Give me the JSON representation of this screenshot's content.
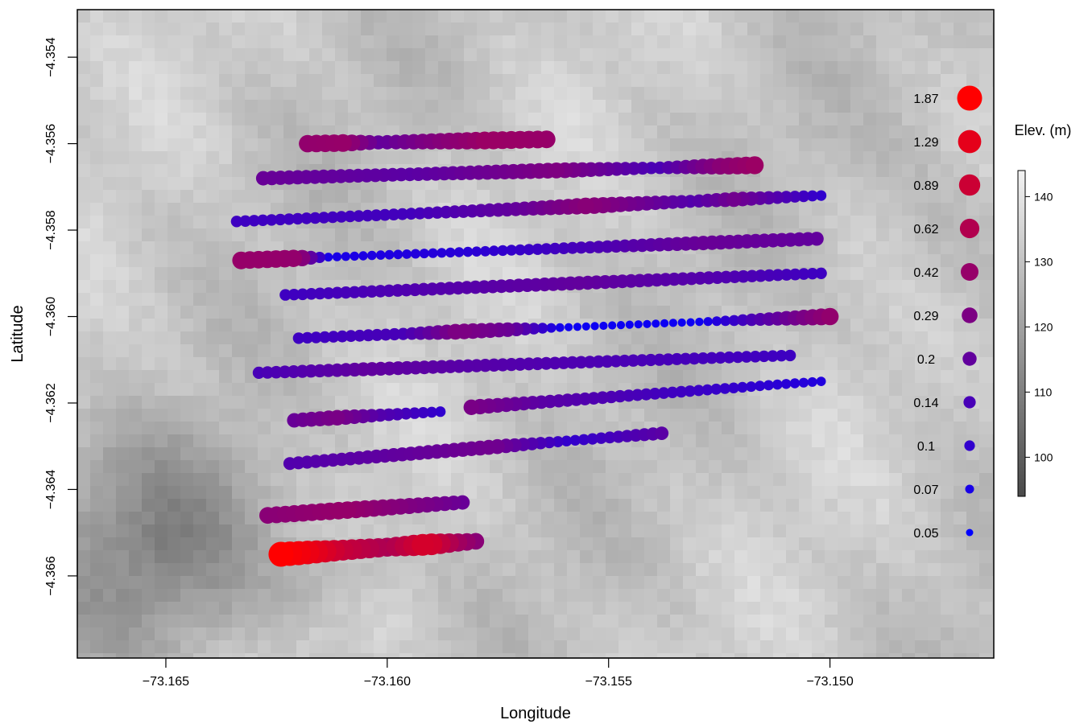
{
  "chart_data": {
    "type": "scatter",
    "title": "",
    "xlabel": "Longitude",
    "ylabel": "Latitude",
    "xlim": [
      -73.167,
      -73.1463
    ],
    "ylim": [
      -4.3679,
      -4.3529
    ],
    "xticks": [
      -73.165,
      -73.16,
      -73.155,
      -73.15
    ],
    "yticks": [
      -4.354,
      -4.356,
      -4.358,
      -4.36,
      -4.362,
      -4.364,
      -4.366
    ],
    "xtick_labels": [
      "−73.165",
      "−73.160",
      "−73.155",
      "−73.150"
    ],
    "ytick_labels": [
      "−4.354",
      "−4.356",
      "−4.358",
      "−4.360",
      "−4.362",
      "−4.364",
      "−4.366"
    ],
    "grid": false,
    "size_legend": {
      "placement": "right",
      "labels": [
        "1.87",
        "1.29",
        "0.89",
        "0.62",
        "0.42",
        "0.29",
        "0.2",
        "0.14",
        "0.1",
        "0.07",
        "0.05"
      ],
      "values": [
        1.87,
        1.29,
        0.89,
        0.62,
        0.42,
        0.29,
        0.2,
        0.14,
        0.1,
        0.07,
        0.05
      ]
    },
    "colorbar": {
      "title": "Elev. (m)",
      "range": [
        94,
        144
      ],
      "ticks": [
        100,
        110,
        120,
        130,
        140
      ],
      "tick_labels": [
        "100",
        "110",
        "120",
        "130",
        "140"
      ],
      "low_color": "#4a4a4a",
      "high_color": "#f2f2f2"
    },
    "point_color_low": "#0000ff",
    "point_color_high": "#ff0000",
    "transects": [
      {
        "lon_start": -73.1618,
        "lat_start": -4.356,
        "lon_end": -73.1564,
        "lat_end": -4.3559,
        "profile": [
          [
            0,
            0.4
          ],
          [
            0.15,
            0.42
          ],
          [
            0.3,
            0.2
          ],
          [
            0.5,
            0.3
          ],
          [
            0.75,
            0.45
          ],
          [
            1,
            0.42
          ]
        ]
      },
      {
        "lon_start": -73.1628,
        "lat_start": -4.3568,
        "lon_end": -73.1517,
        "lat_end": -4.3565,
        "profile": [
          [
            0,
            0.22
          ],
          [
            0.3,
            0.18
          ],
          [
            0.6,
            0.3
          ],
          [
            0.8,
            0.14
          ],
          [
            0.93,
            0.35
          ],
          [
            1,
            0.45
          ]
        ]
      },
      {
        "lon_start": -73.1634,
        "lat_start": -4.3578,
        "lon_end": -73.1502,
        "lat_end": -4.3572,
        "profile": [
          [
            0,
            0.12
          ],
          [
            0.3,
            0.13
          ],
          [
            0.5,
            0.22
          ],
          [
            0.6,
            0.35
          ],
          [
            0.78,
            0.16
          ],
          [
            0.85,
            0.25
          ],
          [
            1,
            0.1
          ]
        ]
      },
      {
        "lon_start": -73.1633,
        "lat_start": -4.3587,
        "lon_end": -73.1503,
        "lat_end": -4.3582,
        "profile": [
          [
            0,
            0.42
          ],
          [
            0.1,
            0.4
          ],
          [
            0.15,
            0.07
          ],
          [
            0.4,
            0.09
          ],
          [
            0.6,
            0.14
          ],
          [
            0.8,
            0.22
          ],
          [
            1,
            0.2
          ]
        ]
      },
      {
        "lon_start": -73.1623,
        "lat_start": -4.3595,
        "lon_end": -73.1502,
        "lat_end": -4.359,
        "profile": [
          [
            0,
            0.12
          ],
          [
            0.25,
            0.16
          ],
          [
            0.55,
            0.2
          ],
          [
            0.8,
            0.16
          ],
          [
            1,
            0.12
          ]
        ]
      },
      {
        "lon_start": -73.162,
        "lat_start": -4.3605,
        "lon_end": -73.15,
        "lat_end": -4.36,
        "profile": [
          [
            0,
            0.12
          ],
          [
            0.2,
            0.14
          ],
          [
            0.3,
            0.3
          ],
          [
            0.4,
            0.22
          ],
          [
            0.5,
            0.06
          ],
          [
            0.75,
            0.06
          ],
          [
            0.85,
            0.14
          ],
          [
            1,
            0.4
          ]
        ]
      },
      {
        "lon_start": -73.1629,
        "lat_start": -4.3613,
        "lon_end": -73.1509,
        "lat_end": -4.3609,
        "profile": [
          [
            0,
            0.14
          ],
          [
            0.2,
            0.2
          ],
          [
            0.5,
            0.16
          ],
          [
            1,
            0.12
          ]
        ]
      },
      {
        "lon_start": -73.1621,
        "lat_start": -4.3624,
        "lon_end": -73.1588,
        "lat_end": -4.3622,
        "profile": [
          [
            0,
            0.22
          ],
          [
            0.3,
            0.28
          ],
          [
            0.6,
            0.16
          ],
          [
            1,
            0.1
          ]
        ]
      },
      {
        "lon_start": -73.1581,
        "lat_start": -4.3621,
        "lon_end": -73.1502,
        "lat_end": -4.3615,
        "profile": [
          [
            0,
            0.28
          ],
          [
            0.2,
            0.18
          ],
          [
            0.6,
            0.12
          ],
          [
            1,
            0.08
          ]
        ]
      },
      {
        "lon_start": -73.1622,
        "lat_start": -4.3634,
        "lon_end": -73.1538,
        "lat_end": -4.3627,
        "profile": [
          [
            0,
            0.16
          ],
          [
            0.3,
            0.2
          ],
          [
            0.55,
            0.25
          ],
          [
            0.75,
            0.1
          ],
          [
            1,
            0.18
          ]
        ]
      },
      {
        "lon_start": -73.1627,
        "lat_start": -4.3646,
        "lon_end": -73.1583,
        "lat_end": -4.3643,
        "profile": [
          [
            0,
            0.35
          ],
          [
            0.4,
            0.42
          ],
          [
            0.8,
            0.28
          ],
          [
            1,
            0.22
          ]
        ]
      },
      {
        "lon_start": -73.1624,
        "lat_start": -4.3655,
        "lon_end": -73.158,
        "lat_end": -4.3652,
        "profile": [
          [
            0,
            1.87
          ],
          [
            0.15,
            1.4
          ],
          [
            0.3,
            0.85
          ],
          [
            0.55,
            0.55
          ],
          [
            0.75,
            1.1
          ],
          [
            0.9,
            0.5
          ],
          [
            1,
            0.35
          ]
        ]
      }
    ]
  }
}
